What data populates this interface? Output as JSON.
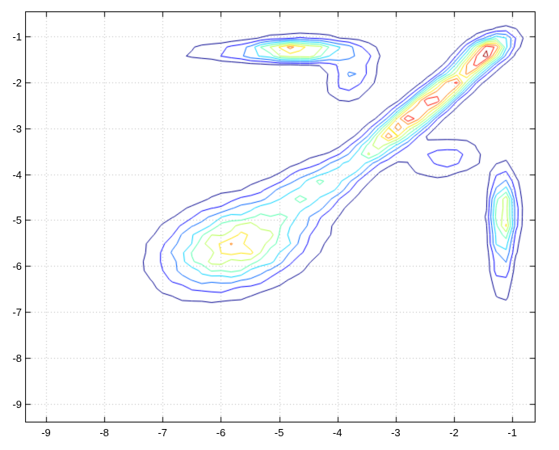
{
  "figure": {
    "background": "#ffffff",
    "axis_color": "#000000",
    "grid_color": "#b8b8b8",
    "tick_label_color": "#000000"
  },
  "chart_data": {
    "type": "contour",
    "title": "",
    "xlabel": "",
    "ylabel": "",
    "xlim": [
      -9.36,
      -0.6
    ],
    "ylim": [
      -9.4,
      -0.46
    ],
    "xticks": [
      -9,
      -8,
      -7,
      -6,
      -5,
      -4,
      -3,
      -2,
      -1
    ],
    "yticks": [
      -1,
      -2,
      -3,
      -4,
      -5,
      -6,
      -7,
      -8,
      -9
    ],
    "grid": true,
    "grid_style": "dotted",
    "n_levels": 10,
    "level_range_fraction": [
      0.1,
      0.95
    ],
    "colormap": "jet",
    "level_colors": [
      "#00008f",
      "#0000ff",
      "#0064ff",
      "#00d4ff",
      "#4cffa9",
      "#b4ff46",
      "#ffe600",
      "#ff7d00",
      "#ff1400",
      "#a00000"
    ],
    "grid_resolution": {
      "nx": 53,
      "ny": 47
    },
    "jitter_fraction": 0.06,
    "density_components": [
      {
        "name": "lower-left-blob",
        "x": -5.75,
        "y": -5.55,
        "sx": 0.8,
        "sy": 0.62,
        "rho": 0.3,
        "amp": 1.0
      },
      {
        "name": "diagonal-ridge-lower",
        "x": -2.95,
        "y": -3.0,
        "sx": 0.6,
        "sy": 0.6,
        "rho": 0.88,
        "amp": 1.02
      },
      {
        "name": "diagonal-ridge-upper",
        "x": -2.05,
        "y": -2.05,
        "sx": 0.5,
        "sy": 0.5,
        "rho": 0.88,
        "amp": 0.95
      },
      {
        "name": "top-right-peak",
        "x": -1.45,
        "y": -1.32,
        "sx": 0.28,
        "sy": 0.24,
        "rho": 0.5,
        "amp": 1.05
      },
      {
        "name": "top-ridge-peak",
        "x": -4.65,
        "y": -1.3,
        "sx": 0.55,
        "sy": 0.16,
        "rho": 0.0,
        "amp": 1.0
      },
      {
        "name": "top-ridge-tail",
        "x": -5.6,
        "y": -1.35,
        "sx": 0.95,
        "sy": 0.13,
        "rho": 0.0,
        "amp": 0.3
      },
      {
        "name": "right-vertical-peak",
        "x": -1.15,
        "y": -4.8,
        "sx": 0.15,
        "sy": 0.55,
        "rho": 0.0,
        "amp": 0.9
      },
      {
        "name": "right-vertical-tail",
        "x": -1.18,
        "y": -5.9,
        "sx": 0.13,
        "sy": 0.65,
        "rho": 0.0,
        "amp": 0.35
      },
      {
        "name": "saddle-bridge",
        "x": -4.4,
        "y": -4.3,
        "sx": 0.55,
        "sy": 0.45,
        "rho": 0.5,
        "amp": 0.55
      },
      {
        "name": "top-connector",
        "x": -3.75,
        "y": -1.85,
        "sx": 0.3,
        "sy": 0.4,
        "rho": 0.3,
        "amp": 0.4
      },
      {
        "name": "ridge-side-lobe",
        "x": -2.15,
        "y": -3.65,
        "sx": 0.45,
        "sy": 0.3,
        "rho": 0.2,
        "amp": 0.35
      }
    ]
  }
}
